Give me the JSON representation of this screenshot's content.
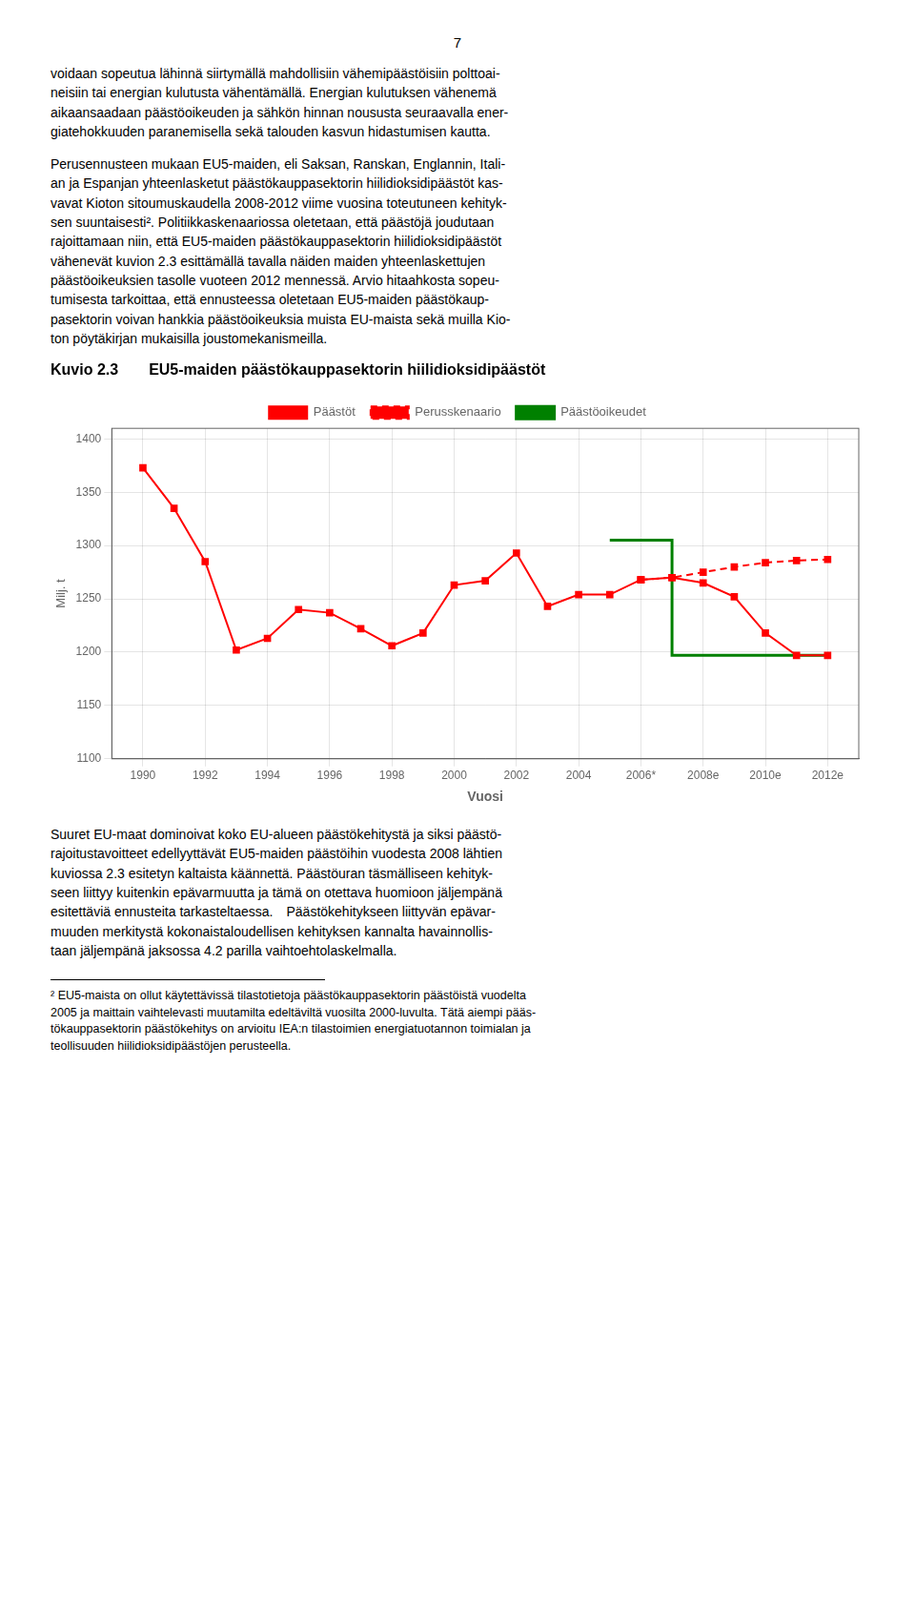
{
  "page_number": "7",
  "text_before": [
    "voidaan sopeutua lähinnä siirtymällä mahdollisiin vähemipäästöisiin polttoai-\nneisiin tai energian kulutusta vähentämällä. Energian kulutuksen vähenemä\naikaansaadaan päästöoikeuden ja sähkön hinnan noususta seuraavalla ener-\ngiatehokkuuden paranemisella sekä talouden kasvun hidastumisen kautta.",
    "Perusennusteen mukaan EU5-maiden, eli Saksan, Ranskan, Englannin, Itali-\nan ja Espanjan yhteenlasketut päästökauppasektorin hiilidioksidipäästöt kas-\nvavat Kioton sitoumuskaudella 2008-2012 viime vuosina toteutuneen kehityk-\nsen suuntaisesti². Politiikkaskenaariossa oletetaan, että päästöjä joudutaan\nrajoittamaan niin, että EU5-maiden päästökauppasektorin hiilidioksidipäästöt\nvähenevät kuvion 2.3 esittämällä tavalla näiden maiden yhteenlaskettujen\npäästöoikeuksien tasolle vuoteen 2012 mennessä. Arvio hitaahkosta sopeu-\ntumisesta tarkoittaa, että ennusteessa oletetaan EU5-maiden päästökaup-\npasektorin voivan hankkia päästöoikeuksia muista EU-maista sekä muilla Kio-\nton pöytäkirjan mukaisilla joustomekanismeilla."
  ],
  "text_after": [
    "Suuret EU-maat dominoivat koko EU-alueen päästökehitystä ja siksi päästö-\nrajoitustavoitteet edellyyttävät EU5-maiden päästöihin vuodesta 2008 lähtien\nkuviossa 2.3 esitetyn kaltaista käännettä. Päästöuran täsmälliseen kehityk-\nseen liittyy kuitenkin epävarmuutta ja tämä on otettava huomioon jäljempänä\nesitettäviä ennusteita tarkasteltaessa. Päästökehitykseen liittyvän epävar-\nmuuden merkitystä kokonaistaloudellisen kehityksen kannalta havainnollis-\ntaan jäljempänä jaksossa 4.2 parilla vaihtoehtolaskelmalla."
  ],
  "footnote": "² EU5-maista on ollut käytettävissä tilastotietoja päästökauppasektorin päästöistä vuodelta\n2005 ja maittain vaihtelevasti muutamilta edeltäviltä vuosilta 2000-luvulta. Tätä aiempi pääs-\ntökauppasektorin päästökehitys on arvioitu IEA:n tilastoimien energiatuotannon toimialan ja\nteollisuuden hiilidioksidipäästöjen perusteella.",
  "chart_data": {
    "type": "line",
    "title": "Kuvio 2.3  EU5-maiden päästökauppasektorin hiilidioksidipäästöt",
    "xlabel": "Vuosi",
    "ylabel": "Milj. t",
    "xlim": [
      1989,
      2013
    ],
    "xticks": [
      1990,
      1992,
      1994,
      1996,
      1998,
      2000,
      2002,
      2004,
      {
        "value": 2006,
        "label": "2006*"
      },
      {
        "value": 2008,
        "label": "2008e"
      },
      {
        "value": 2010,
        "label": "2010e"
      },
      {
        "value": 2012,
        "label": "2012e"
      }
    ],
    "ylim": [
      1100,
      1410
    ],
    "yticks": [
      1100,
      1150,
      1200,
      1250,
      1300,
      1350,
      1400
    ],
    "grid": true,
    "legend": "top",
    "series": [
      {
        "name": "Päästöt",
        "color": "#FF0000",
        "marker": "square",
        "line_style": "solid",
        "x": [
          1990,
          1991,
          1992,
          1993,
          1994,
          1995,
          1996,
          1997,
          1998,
          1999,
          2000,
          2001,
          2002,
          2003,
          2004,
          2005,
          2006,
          2006,
          2007,
          2008,
          2009,
          2010,
          2011,
          2012
        ],
        "values": [
          1373,
          1335,
          1285,
          1202,
          1213,
          1240,
          1237,
          1222,
          1206,
          1218,
          1263,
          1267,
          1293,
          1243,
          1254,
          1254,
          1268,
          1268,
          1270,
          1265,
          1252,
          1218,
          1197,
          1197
        ]
      },
      {
        "name": "Perusskenaario",
        "color": "#FF0000",
        "marker": "square",
        "line_style": "dashed",
        "x": [
          2006,
          2007,
          2008,
          2009,
          2010,
          2011,
          2012
        ],
        "values": [
          1268,
          1270,
          1275,
          1280,
          1284,
          1286,
          1287
        ]
      },
      {
        "name": "Päästöoikeudet",
        "color": "#008000",
        "marker": "none",
        "line_style": "solid",
        "x": [
          2005,
          2007,
          2007,
          2007,
          2007,
          2012
        ],
        "values": [
          1305,
          1305,
          1305,
          1197,
          1197,
          1197
        ]
      }
    ]
  }
}
